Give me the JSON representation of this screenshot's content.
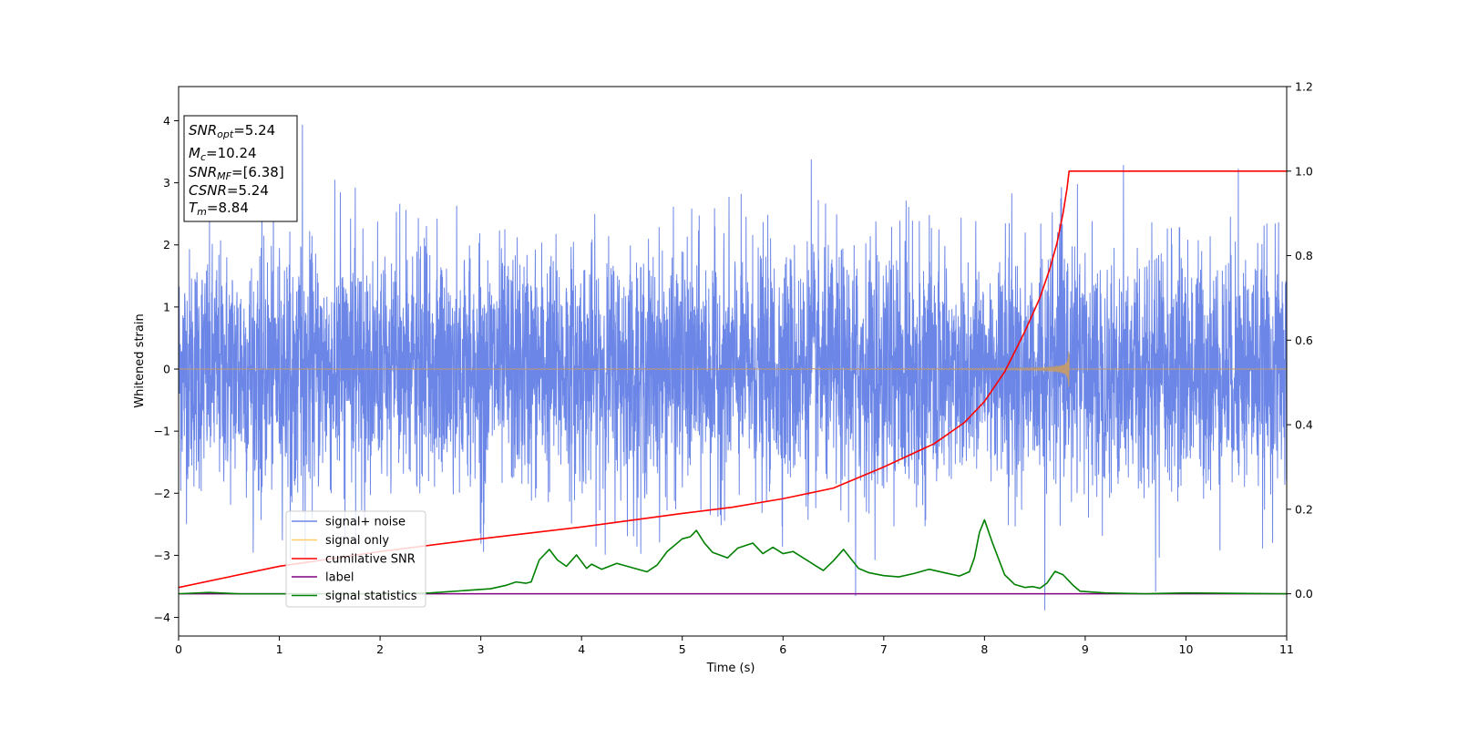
{
  "chart_data": {
    "type": "line",
    "xlabel": "Time (s)",
    "ylabel": "Whitened strain",
    "xlim": [
      0,
      11
    ],
    "ylim": [
      -4.3,
      4.55
    ],
    "y2lim": [
      -0.1,
      1.2
    ],
    "xticks": [
      "0",
      "1",
      "2",
      "3",
      "4",
      "5",
      "6",
      "7",
      "8",
      "9",
      "10",
      "11"
    ],
    "yticks": [
      "4",
      "3",
      "2",
      "1",
      "0",
      "−1",
      "−2",
      "−3",
      "−4"
    ],
    "y2ticks": [
      "1.2",
      "1.0",
      "0.8",
      "0.6",
      "0.4",
      "0.2",
      "0.0"
    ],
    "legend": {
      "position": "lower-left",
      "entries": [
        "signal+ noise",
        "signal only",
        "cumilative SNR",
        "label",
        "signal statistics"
      ]
    },
    "annotation": {
      "snr_opt": {
        "base": "SNR",
        "sub": "opt",
        "value": "=5.24"
      },
      "mc": {
        "base": "M",
        "sub": "c",
        "value": "=10.24"
      },
      "snr_mf": {
        "base": "SNR",
        "sub": "MF",
        "value": "=[6.38]"
      },
      "csnr": {
        "base": "CSNR",
        "value": "=5.24"
      },
      "tm": {
        "base": "T",
        "sub": "m",
        "value": "=8.84"
      }
    },
    "merger_time": 8.84,
    "series": [
      {
        "name": "signal+ noise",
        "axis": "left",
        "color": "#6b86e6",
        "description_kind": "noise",
        "std": 0.95,
        "spikes": [
          [
            1.23,
            3.93
          ],
          [
            6.28,
            3.37
          ],
          [
            9.38,
            3.28
          ],
          [
            10.52,
            3.22
          ],
          [
            8.6,
            -3.88
          ],
          [
            9.7,
            -3.58
          ],
          [
            6.72,
            -3.65
          ]
        ]
      },
      {
        "name": "signal only",
        "axis": "left",
        "color": "#c09a70",
        "description_kind": "chirp",
        "peak_amplitude": 0.78
      },
      {
        "name": "cumilative SNR",
        "axis": "right",
        "color": "#ff0000",
        "x": [
          0,
          1,
          2,
          3,
          4,
          5,
          5.5,
          6,
          6.5,
          7,
          7.5,
          7.8,
          8.0,
          8.2,
          8.4,
          8.55,
          8.65,
          8.72,
          8.78,
          8.82,
          8.84,
          11
        ],
        "values": [
          0.015,
          0.065,
          0.1,
          0.13,
          0.158,
          0.19,
          0.205,
          0.225,
          0.25,
          0.3,
          0.355,
          0.405,
          0.455,
          0.525,
          0.62,
          0.7,
          0.77,
          0.83,
          0.9,
          0.96,
          1.0,
          1.0
        ]
      },
      {
        "name": "label",
        "axis": "right",
        "color": "#800080",
        "x": [
          0,
          11
        ],
        "values": [
          0,
          0
        ]
      },
      {
        "name": "signal statistics",
        "axis": "right",
        "color": "#008000",
        "x": [
          0,
          0.3,
          0.6,
          1,
          2,
          2.5,
          2.8,
          3.1,
          3.25,
          3.35,
          3.45,
          3.5,
          3.58,
          3.68,
          3.76,
          3.85,
          3.95,
          4.05,
          4.1,
          4.2,
          4.35,
          4.5,
          4.65,
          4.75,
          4.85,
          5.0,
          5.08,
          5.14,
          5.22,
          5.3,
          5.45,
          5.55,
          5.7,
          5.8,
          5.9,
          6.0,
          6.1,
          6.2,
          6.3,
          6.4,
          6.5,
          6.6,
          6.75,
          6.85,
          7.0,
          7.15,
          7.3,
          7.45,
          7.6,
          7.75,
          7.85,
          7.9,
          7.95,
          8.0,
          8.08,
          8.2,
          8.3,
          8.4,
          8.48,
          8.55,
          8.62,
          8.7,
          8.78,
          8.88,
          8.95,
          9.2,
          9.6,
          10,
          10.5,
          11
        ],
        "values": [
          0,
          0.003,
          0,
          0,
          0,
          0.002,
          0.007,
          0.012,
          0.02,
          0.028,
          0.025,
          0.028,
          0.08,
          0.105,
          0.08,
          0.065,
          0.092,
          0.06,
          0.07,
          0.058,
          0.072,
          0.062,
          0.052,
          0.068,
          0.1,
          0.13,
          0.135,
          0.15,
          0.12,
          0.098,
          0.085,
          0.108,
          0.12,
          0.095,
          0.11,
          0.095,
          0.1,
          0.085,
          0.07,
          0.055,
          0.078,
          0.105,
          0.06,
          0.05,
          0.043,
          0.04,
          0.048,
          0.058,
          0.05,
          0.042,
          0.052,
          0.085,
          0.145,
          0.175,
          0.12,
          0.045,
          0.022,
          0.015,
          0.017,
          0.013,
          0.025,
          0.053,
          0.045,
          0.02,
          0.006,
          0.002,
          0,
          0.002,
          0.001,
          0
        ]
      }
    ]
  }
}
